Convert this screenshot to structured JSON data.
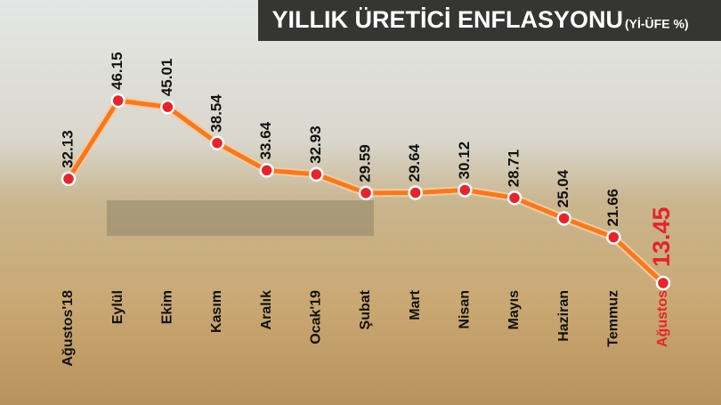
{
  "chart_data": {
    "type": "line",
    "title": "YILLIK ÜRETİCİ ENFLASYONU",
    "subtitle": "(Yİ-ÜFE %)",
    "categories": [
      "Ağustos'18",
      "Eylül",
      "Ekim",
      "Kasım",
      "Aralık",
      "Ocak'19",
      "Şubat",
      "Mart",
      "Nisan",
      "Mayıs",
      "Haziran",
      "Temmuz",
      "Ağustos"
    ],
    "values": [
      32.13,
      46.15,
      45.01,
      38.54,
      33.64,
      32.93,
      29.59,
      29.64,
      30.12,
      28.71,
      25.04,
      21.66,
      13.45
    ],
    "line_color": "#f47a20",
    "marker_color": "#e5242b",
    "highlight_color": "#e5242b"
  }
}
